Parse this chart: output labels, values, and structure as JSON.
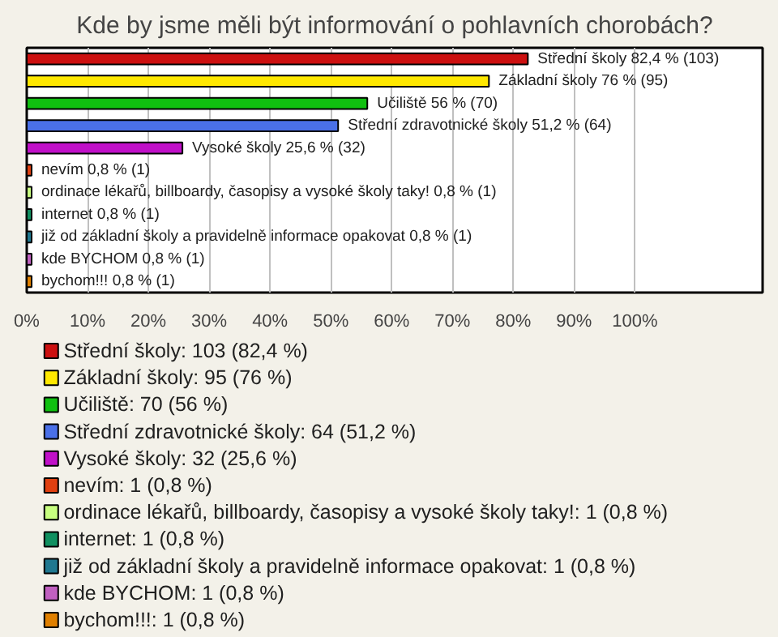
{
  "chart_data": {
    "type": "bar",
    "orientation": "horizontal",
    "title": "Kde by jsme měli být informování o pohlavních chorobách?",
    "categories": [
      null,
      null,
      null,
      null,
      null,
      null,
      null,
      null,
      null,
      null,
      null
    ],
    "xlim": [
      0,
      121
    ],
    "xticks": [
      {
        "value": 0,
        "label": "0%"
      },
      {
        "value": 10,
        "label": "10%"
      },
      {
        "value": 20,
        "label": "20%"
      },
      {
        "value": 30,
        "label": "30%"
      },
      {
        "value": 40,
        "label": "40%"
      },
      {
        "value": 50,
        "label": "50%"
      },
      {
        "value": 60,
        "label": "60%"
      },
      {
        "value": 70,
        "label": "70%"
      },
      {
        "value": 80,
        "label": "80%"
      },
      {
        "value": 90,
        "label": "90%"
      },
      {
        "value": 100,
        "label": "100%"
      }
    ],
    "tick_labels": "x",
    "grid": "x",
    "legend": "bottom",
    "series": [
      {
        "name": "Střední školy: 103 (82,4 %)",
        "color": "#cc1010",
        "values": [
          82.4,
          null,
          null,
          null,
          null,
          null,
          null,
          null,
          null,
          null,
          null
        ],
        "value_labels": [
          "Střední školy 82,4 % (103)",
          null,
          null,
          null,
          null,
          null,
          null,
          null,
          null,
          null,
          null
        ]
      },
      {
        "name": "Základní školy: 95 (76 %)",
        "color": "#ffe800",
        "values": [
          null,
          76,
          null,
          null,
          null,
          null,
          null,
          null,
          null,
          null,
          null
        ],
        "value_labels": [
          null,
          "Základní školy 76 % (95)",
          null,
          null,
          null,
          null,
          null,
          null,
          null,
          null,
          null
        ]
      },
      {
        "name": "Učiliště: 70 (56 %)",
        "color": "#10c010",
        "values": [
          null,
          null,
          56,
          null,
          null,
          null,
          null,
          null,
          null,
          null,
          null
        ],
        "value_labels": [
          null,
          null,
          "Učiliště 56 % (70)",
          null,
          null,
          null,
          null,
          null,
          null,
          null,
          null
        ]
      },
      {
        "name": "Střední zdravotnické školy: 64 (51,2 %)",
        "color": "#4a70e8",
        "values": [
          null,
          null,
          null,
          51.2,
          null,
          null,
          null,
          null,
          null,
          null,
          null
        ],
        "value_labels": [
          null,
          null,
          null,
          "Střední zdravotnické školy 51,2 % (64)",
          null,
          null,
          null,
          null,
          null,
          null,
          null
        ]
      },
      {
        "name": "Vysoké školy: 32 (25,6 %)",
        "color": "#c010c8",
        "values": [
          null,
          null,
          null,
          null,
          25.6,
          null,
          null,
          null,
          null,
          null,
          null
        ],
        "value_labels": [
          null,
          null,
          null,
          null,
          "Vysoké školy 25,6 % (32)",
          null,
          null,
          null,
          null,
          null,
          null
        ]
      },
      {
        "name": "nevím: 1 (0,8 %)",
        "color": "#e04010",
        "values": [
          null,
          null,
          null,
          null,
          null,
          0.8,
          null,
          null,
          null,
          null,
          null
        ],
        "value_labels": [
          null,
          null,
          null,
          null,
          null,
          "nevím 0,8 % (1)",
          null,
          null,
          null,
          null,
          null
        ]
      },
      {
        "name": "ordinace lékařů, billboardy, časopisy a vysoké školy taky!: 1 (0,8 %)",
        "color": "#c8ff80",
        "values": [
          null,
          null,
          null,
          null,
          null,
          null,
          0.8,
          null,
          null,
          null,
          null
        ],
        "value_labels": [
          null,
          null,
          null,
          null,
          null,
          null,
          "ordinace lékařů, billboardy, časopisy a vysoké školy taky! 0,8 % (1)",
          null,
          null,
          null,
          null
        ]
      },
      {
        "name": "internet: 1 (0,8 %)",
        "color": "#109060",
        "values": [
          null,
          null,
          null,
          null,
          null,
          null,
          null,
          0.8,
          null,
          null,
          null
        ],
        "value_labels": [
          null,
          null,
          null,
          null,
          null,
          null,
          null,
          "internet 0,8 % (1)",
          null,
          null,
          null
        ]
      },
      {
        "name": "již od základní školy a pravidelně informace opakovat: 1 (0,8 %)",
        "color": "#207890",
        "values": [
          null,
          null,
          null,
          null,
          null,
          null,
          null,
          null,
          0.8,
          null,
          null
        ],
        "value_labels": [
          null,
          null,
          null,
          null,
          null,
          null,
          null,
          null,
          "již od základní školy a pravidelně informace opakovat 0,8 % (1)",
          null,
          null
        ]
      },
      {
        "name": "kde BYCHOM: 1 (0,8 %)",
        "color": "#c060c0",
        "values": [
          null,
          null,
          null,
          null,
          null,
          null,
          null,
          null,
          null,
          0.8,
          null
        ],
        "value_labels": [
          null,
          null,
          null,
          null,
          null,
          null,
          null,
          null,
          null,
          "kde BYCHOM 0,8 % (1)",
          null
        ]
      },
      {
        "name": "bychom!!!: 1 (0,8 %)",
        "color": "#e08000",
        "values": [
          null,
          null,
          null,
          null,
          null,
          null,
          null,
          null,
          null,
          null,
          0.8
        ],
        "value_labels": [
          null,
          null,
          null,
          null,
          null,
          null,
          null,
          null,
          null,
          null,
          "bychom!!! 0,8 % (1)"
        ]
      }
    ]
  }
}
